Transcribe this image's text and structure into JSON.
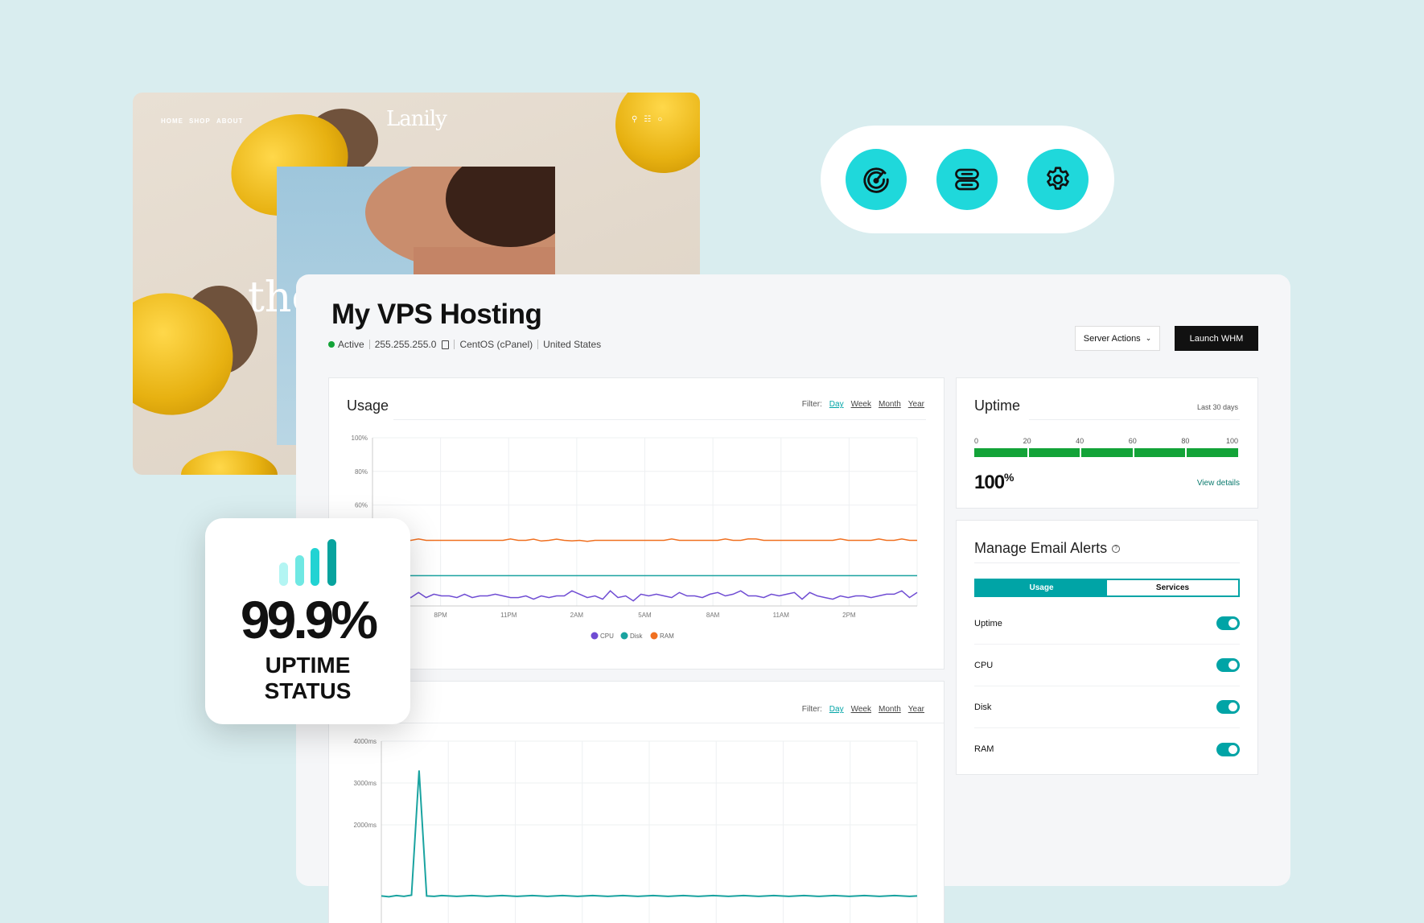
{
  "website": {
    "nav": [
      "HOME",
      "SHOP",
      "ABOUT"
    ],
    "logo": "Lanily",
    "hero_text": "the",
    "icons": [
      "search-icon",
      "cart-icon",
      "user-icon"
    ]
  },
  "quick_actions": {
    "icons": [
      "speedometer-icon",
      "server-icon",
      "gear-icon"
    ],
    "color": "#1fd8db"
  },
  "header": {
    "title": "My VPS Hosting",
    "status": "Active",
    "ip": "255.255.255.0",
    "os": "CentOS (cPanel)",
    "location": "United States",
    "server_actions": "Server Actions",
    "launch": "Launch WHM"
  },
  "usage": {
    "title": "Usage",
    "filter_label": "Filter:",
    "filters": [
      "Day",
      "Week",
      "Month",
      "Year"
    ],
    "active_filter": "Day"
  },
  "uptime": {
    "title": "Uptime",
    "period": "Last 30 days",
    "scale": [
      "0",
      "20",
      "40",
      "60",
      "80",
      "100"
    ],
    "value": "100",
    "unit": "%",
    "fill_percent": 100,
    "link": "View details",
    "color": "#13a338"
  },
  "alerts": {
    "title": "Manage Email Alerts",
    "tabs": [
      "Usage",
      "Services"
    ],
    "active_tab": "Usage",
    "rows": [
      {
        "label": "Uptime",
        "on": true
      },
      {
        "label": "CPU",
        "on": true
      },
      {
        "label": "Disk",
        "on": true
      },
      {
        "label": "RAM",
        "on": true
      }
    ]
  },
  "response": {
    "filter_label": "Filter:",
    "filters": [
      "Day",
      "Week",
      "Month",
      "Year"
    ],
    "active_filter": "Day"
  },
  "badge": {
    "value": "99.9%",
    "line1": "UPTIME",
    "line2": "STATUS"
  },
  "chart_data": [
    {
      "type": "line",
      "title": "Usage",
      "x_ticks": [
        "8PM",
        "11PM",
        "2AM",
        "5AM",
        "8AM",
        "11AM",
        "2PM"
      ],
      "y_ticks": [
        "100%",
        "80%",
        "60%"
      ],
      "ylim": [
        0,
        100
      ],
      "grid": true,
      "legend": "bottom",
      "series": [
        {
          "name": "CPU",
          "color": "#6f4cd3",
          "values": [
            7,
            6,
            4,
            7,
            7,
            5,
            8,
            5,
            7,
            6,
            6,
            5,
            7,
            5,
            6,
            6,
            7,
            6,
            5,
            5,
            6,
            4,
            6,
            5,
            6,
            6,
            9,
            7,
            5,
            6,
            4,
            9,
            5,
            6,
            3,
            7,
            6,
            7,
            6,
            5,
            8,
            6,
            6,
            5,
            7,
            8,
            6,
            7,
            9,
            6,
            6,
            5,
            7,
            6,
            7,
            8,
            4,
            8,
            6,
            5,
            4,
            6,
            5,
            6,
            6,
            5,
            6,
            7,
            7,
            9,
            5,
            8
          ]
        },
        {
          "name": "Disk",
          "color": "#1aa3a0",
          "values": [
            18,
            18,
            18,
            18,
            18,
            18,
            18,
            18,
            18,
            18,
            18,
            18,
            18,
            18,
            18,
            18,
            18,
            18,
            18,
            18,
            18,
            18,
            18,
            18,
            18,
            18,
            18,
            18,
            18,
            18,
            18,
            18,
            18,
            18,
            18,
            18,
            18,
            18,
            18,
            18,
            18,
            18,
            18,
            18,
            18,
            18,
            18,
            18,
            18,
            18,
            18,
            18,
            18,
            18,
            18,
            18,
            18,
            18,
            18,
            18,
            18,
            18,
            18,
            18,
            18,
            18,
            18,
            18,
            18,
            18,
            18,
            18
          ]
        },
        {
          "name": "RAM",
          "color": "#f07020",
          "values": [
            39,
            39,
            39,
            39,
            39,
            39,
            39.8,
            39,
            39,
            39,
            39,
            39,
            39,
            39,
            39,
            39,
            39,
            39,
            39.8,
            39,
            39,
            39.7,
            38.6,
            39,
            39.7,
            39,
            38.7,
            39,
            38.4,
            39,
            39,
            39,
            39,
            39,
            39,
            39,
            39,
            39,
            39,
            39.8,
            39,
            39,
            39,
            39,
            39,
            39,
            39.8,
            39,
            39,
            39.9,
            39.8,
            39,
            39,
            39,
            39,
            39,
            39,
            39,
            39,
            39,
            39,
            39.8,
            39,
            39,
            39,
            39,
            39.8,
            39,
            39,
            39.8,
            39,
            39
          ]
        }
      ]
    },
    {
      "type": "line",
      "y_ticks": [
        "4000ms",
        "3000ms",
        "2000ms"
      ],
      "ylim": [
        0,
        4000
      ],
      "grid": true,
      "series": [
        {
          "color": "#1aa3a0",
          "values": [
            300,
            280,
            310,
            290,
            320,
            3300,
            300,
            290,
            310,
            300,
            290,
            300,
            310,
            300,
            290,
            300,
            310,
            300,
            290,
            300,
            310,
            300,
            290,
            300,
            310,
            300,
            290,
            300,
            310,
            300,
            290,
            300,
            310,
            300,
            290,
            300,
            310,
            300,
            290,
            300,
            310,
            300,
            290,
            300,
            310,
            300,
            290,
            300,
            310,
            300,
            290,
            300,
            310,
            300,
            290,
            300,
            310,
            300,
            290,
            300,
            310,
            300,
            290,
            300,
            310,
            300,
            290,
            300,
            310,
            300,
            290,
            300
          ]
        }
      ]
    }
  ]
}
